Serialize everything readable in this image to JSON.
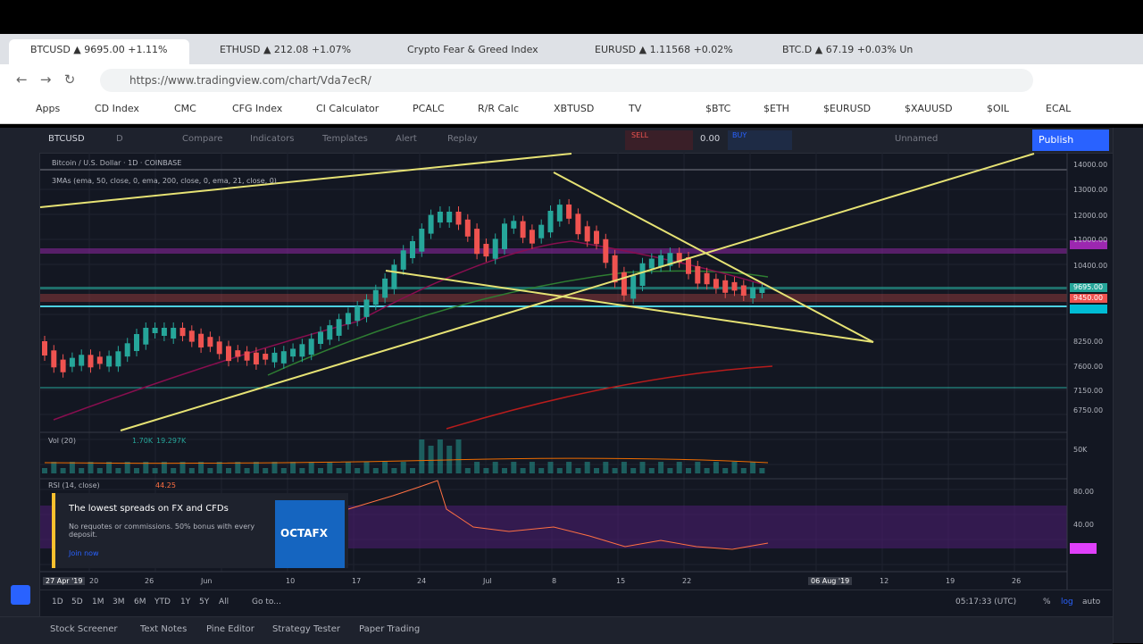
{
  "browser": {
    "tabs": [
      "BTCUSD ▲ 9695.00 +1.11%",
      "ETHUSD ▲ 212.08 +1.07%",
      "Crypto Fear & Greed Index",
      "EURUSD ▲ 1.11568 +0.02%",
      "BTC.D ▲ 67.19 +0.03% Un"
    ],
    "url": "https://www.tradingview.com/chart/Vda7ecR/",
    "bookmarks": [
      "Apps",
      "CD Index",
      "CMC",
      "CFG Index",
      "CI Calculator",
      "PCALC",
      "R/R Calc",
      "XBTUSD",
      "TV",
      "$BTC",
      "$ETH",
      "$EURUSD",
      "$XAUUSD",
      "$OIL",
      "ECAL"
    ]
  },
  "toolbar": {
    "symbol": "BTCUSD",
    "interval": "D",
    "items": [
      "Compare",
      "Indicators",
      "Templates",
      "Alert",
      "Replay"
    ],
    "sell": "SELL",
    "spread": "0.00",
    "buy": "BUY",
    "layout": "Unnamed",
    "publish": "Publish"
  },
  "legend": {
    "title": "Bitcoin / U.S. Dollar · 1D · COINBASE",
    "mas": "3MAs (ema, 50, close, 0, ema, 200, close, 0, ema, 21, close, 0)",
    "volume": "Vol (20)",
    "vol_a": "1.70K",
    "vol_b": "19.297K",
    "rsi": "RSI (14, close)",
    "rsi_value": "44.25"
  },
  "price_axis": [
    "14000.00",
    "13000.00",
    "12000.00",
    "11000.00",
    "10400.00",
    "9695.00",
    "9450.00",
    "8250.00",
    "7600.00",
    "7150.00",
    "6750.00"
  ],
  "volume_axis": [
    "50K"
  ],
  "rsi_axis": [
    "80.00",
    "40.00"
  ],
  "time_axis": [
    "27 Apr '19",
    "20",
    "26",
    "Jun",
    "10",
    "17",
    "24",
    "Jul",
    "8",
    "15",
    "22",
    "06 Aug '19",
    "12",
    "19",
    "26"
  ],
  "ad": {
    "headline": "The lowest spreads on FX and CFDs",
    "body": "No requotes or commissions. 50% bonus with every deposit.",
    "cta": "Join now",
    "brand": "OCTAFX"
  },
  "ranges": [
    "1D",
    "5D",
    "1M",
    "3M",
    "6M",
    "YTD",
    "1Y",
    "5Y",
    "All",
    "Go to..."
  ],
  "status": {
    "time": "05:17:33 (UTC)",
    "percent": "%",
    "log": "log",
    "auto": "auto"
  },
  "bottom_tabs": [
    "Stock Screener",
    "Text Notes",
    "Pine Editor",
    "Strategy Tester",
    "Paper Trading"
  ]
}
